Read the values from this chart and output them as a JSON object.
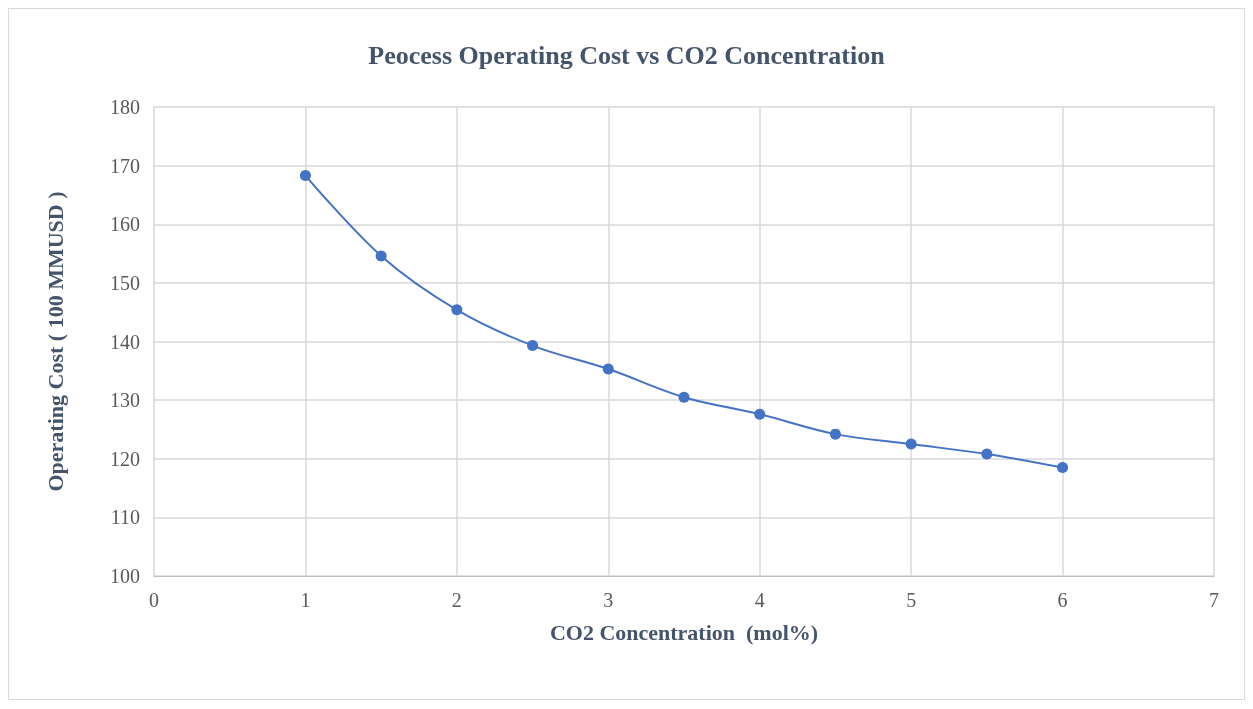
{
  "chart_data": {
    "type": "line",
    "title": "Peocess Operating Cost vs CO2 Concentration",
    "xlabel": "CO2 Concentration  (mol%)",
    "ylabel": "Operating Cost ( 100 MMUSD )",
    "x": [
      1,
      1.5,
      2,
      2.5,
      3,
      3.5,
      4,
      4.5,
      5,
      5.5,
      6
    ],
    "series": [
      {
        "color": "#4472c4",
        "values": [
          168.3,
          154.6,
          145.4,
          139.3,
          135.3,
          130.5,
          127.6,
          124.2,
          122.5,
          120.8,
          118.5
        ]
      }
    ],
    "xlim": [
      0,
      7
    ],
    "xticks": [
      0,
      1,
      2,
      3,
      4,
      5,
      6,
      7
    ],
    "ylim": [
      100,
      180
    ],
    "yticks": [
      100,
      110,
      120,
      130,
      140,
      150,
      160,
      170,
      180
    ],
    "grid": true,
    "marker": "circle",
    "line_style": "solid"
  }
}
